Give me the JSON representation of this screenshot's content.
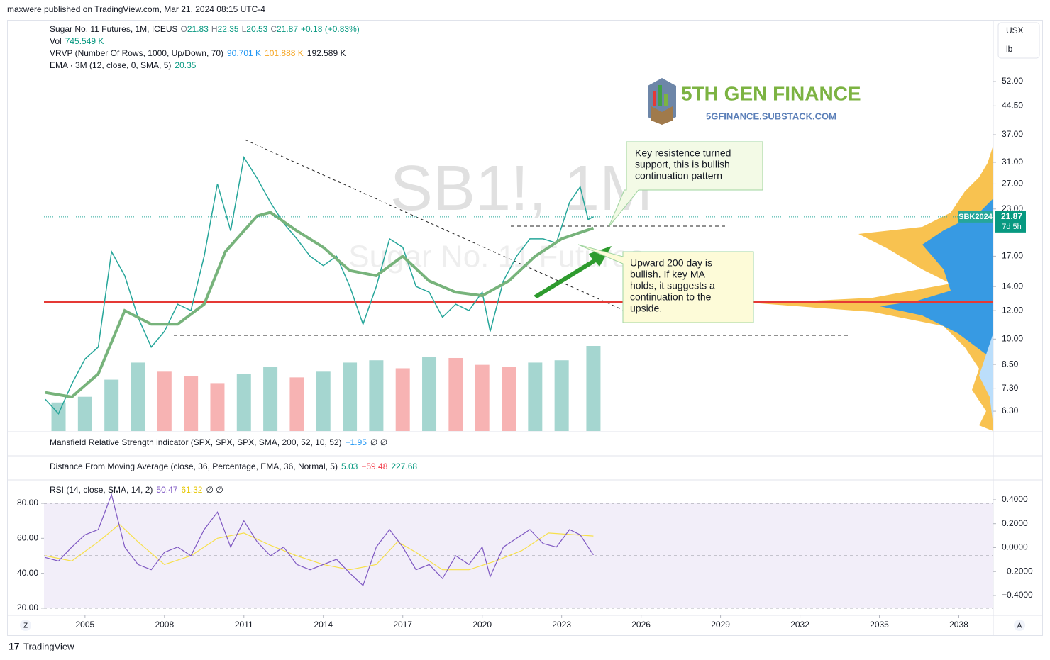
{
  "header": {
    "publisher": "maxwere published on TradingView.com, Mar 21, 2024 08:15 UTC-4"
  },
  "legend": {
    "symbol": "Sugar No. 11 Futures, 1M, ICEUS",
    "ohlc": [
      {
        "label": "O",
        "value": "21.83"
      },
      {
        "label": "H",
        "value": "22.35"
      },
      {
        "label": "L",
        "value": "20.53"
      },
      {
        "label": "C",
        "value": "21.87"
      }
    ],
    "change": "+0.18 (+0.83%)",
    "vol_label": "Vol",
    "vol_value": "745.549 K",
    "vrvp_label": "VRVP (Number Of Rows, 1000, Up/Down, 70)",
    "vrvp_values": [
      "90.701 K",
      "101.888 K",
      "192.589 K"
    ],
    "ema_label": "EMA · 3M (12, close, 0, SMA, 5)",
    "ema_value": "20.35"
  },
  "watermark": {
    "symbol": "SB1!, 1M",
    "name": "Sugar No. 11 Futures"
  },
  "logo": {
    "name": "5TH GEN FINANCE",
    "url": "5GFINANCE.SUBSTACK.COM"
  },
  "annotations": [
    {
      "lines": [
        "Key resistence turned",
        "support, this is bullish",
        "continuation pattern"
      ]
    },
    {
      "lines": [
        "Upward 200 day is",
        "bullish.  If key MA",
        "holds, it suggests a",
        "continuation to the",
        "upside."
      ]
    }
  ],
  "chart_data": {
    "type": "line",
    "log_scale": true,
    "x": [
      2003.5,
      2004,
      2004.5,
      2005,
      2005.5,
      2006,
      2006.5,
      2007,
      2007.5,
      2008,
      2008.5,
      2009,
      2009.5,
      2010,
      2010.5,
      2011,
      2011.5,
      2012,
      2012.5,
      2013,
      2013.5,
      2014,
      2014.5,
      2015,
      2015.5,
      2016,
      2016.5,
      2017,
      2017.5,
      2018,
      2018.5,
      2019,
      2019.5,
      2020,
      2020.3,
      2020.8,
      2021.3,
      2021.8,
      2022.3,
      2022.8,
      2023.3,
      2023.7,
      2024,
      2024.2
    ],
    "series": [
      {
        "name": "Sugar No. 11 Futures",
        "color": "#26a69a",
        "values": [
          6.8,
          6.2,
          7.5,
          8.8,
          9.5,
          17.5,
          15,
          11.5,
          9.5,
          10.5,
          12.5,
          12,
          17,
          27,
          20,
          32,
          28,
          24,
          21,
          19,
          17,
          16,
          17,
          14,
          11,
          14,
          19,
          18,
          14,
          13.5,
          11.5,
          12.5,
          12,
          13.5,
          10.5,
          14.5,
          17,
          19,
          19,
          18.5,
          24,
          26.5,
          21.5,
          21.87
        ]
      }
    ],
    "ema": {
      "color": "#77b37b",
      "x": [
        2003.5,
        2004.5,
        2005.5,
        2006.5,
        2007.5,
        2008.5,
        2009.5,
        2010.3,
        2011,
        2011.5,
        2012,
        2013,
        2014,
        2015,
        2016,
        2017,
        2018,
        2019,
        2020,
        2021,
        2022,
        2023,
        2024.2
      ],
      "values": [
        7.1,
        6.9,
        8,
        12,
        11,
        11,
        12.5,
        17.5,
        20,
        22,
        22.5,
        20,
        18,
        15.5,
        15,
        17,
        14.5,
        13.5,
        13.2,
        14.5,
        17,
        19,
        20.35
      ]
    },
    "last": {
      "contract": "SBK2024",
      "price": 21.87,
      "countdown": "7d 5h"
    },
    "ylim": [
      5.55,
      76.5
    ],
    "yticks": [
      {
        "value": 52,
        "label": "52.00"
      },
      {
        "value": 44.5,
        "label": "44.50"
      },
      {
        "value": 37,
        "label": "37.00"
      },
      {
        "value": 31,
        "label": "31.00"
      },
      {
        "value": 27,
        "label": "27.00"
      },
      {
        "value": 23,
        "label": "23.00"
      },
      {
        "value": 17,
        "label": "17.00"
      },
      {
        "value": 14,
        "label": "14.00"
      },
      {
        "value": 12,
        "label": "12.00"
      },
      {
        "value": 10,
        "label": "10.00"
      },
      {
        "value": 8.5,
        "label": "8.50"
      },
      {
        "value": 7.3,
        "label": "7.30"
      },
      {
        "value": 6.3,
        "label": "6.30"
      }
    ],
    "xlim": [
      2003.45,
      2039.3
    ],
    "xticks": [
      2005,
      2008,
      2011,
      2014,
      2017,
      2020,
      2023,
      2026,
      2029,
      2032,
      2035,
      2038
    ],
    "currency": "USX",
    "unit": "lb"
  },
  "volume": {
    "x": [
      2004,
      2005,
      2006,
      2007,
      2008,
      2009,
      2010,
      2011,
      2012,
      2013,
      2014,
      2015,
      2016,
      2017,
      2018,
      2019,
      2020,
      2021,
      2022,
      2023,
      2024.2
    ],
    "values": [
      250,
      300,
      450,
      600,
      520,
      480,
      420,
      500,
      560,
      470,
      520,
      600,
      620,
      550,
      650,
      640,
      580,
      560,
      600,
      620,
      745.549
    ]
  },
  "indicators": [
    {
      "label": "Mansfield Relative Strength indicator (SPX, SPX, SPX, SMA, 200, 52, 10, 52)",
      "values": [
        "−1.95",
        "∅ ∅"
      ]
    },
    {
      "label": "Distance From Moving Average (close, 36, Percentage, EMA, 36, Normal, 5)",
      "values": [
        "5.03",
        "−59.48",
        "227.68"
      ]
    }
  ],
  "rsi_chart": {
    "type": "line",
    "label": "RSI (14, close, SMA, 14, 2)",
    "values_text": [
      "50.47",
      "61.32",
      "∅ ∅"
    ],
    "series": [
      {
        "name": "RSI",
        "color": "#7e57c2",
        "x": [
          2003.5,
          2004,
          2004.5,
          2005,
          2005.5,
          2006,
          2006.5,
          2007,
          2007.5,
          2008,
          2008.5,
          2009,
          2009.5,
          2010,
          2010.5,
          2011,
          2011.5,
          2012,
          2012.5,
          2013,
          2013.5,
          2014,
          2014.5,
          2015,
          2015.5,
          2016,
          2016.5,
          2017,
          2017.5,
          2018,
          2018.5,
          2019,
          2019.5,
          2020,
          2020.3,
          2020.8,
          2021.3,
          2021.8,
          2022.3,
          2022.8,
          2023.3,
          2023.7,
          2024,
          2024.2
        ],
        "values": [
          49,
          47,
          55,
          62,
          65,
          85,
          55,
          45,
          42,
          52,
          55,
          50,
          65,
          75,
          55,
          70,
          58,
          50,
          55,
          45,
          42,
          45,
          48,
          40,
          33,
          55,
          65,
          55,
          42,
          45,
          37,
          50,
          45,
          55,
          38,
          55,
          60,
          65,
          57,
          55,
          65,
          62,
          55,
          50.47
        ]
      },
      {
        "name": "RSI-based MA",
        "color": "#f7e04b",
        "x": [
          2003.5,
          2004.5,
          2005.5,
          2006.3,
          2007,
          2008,
          2009,
          2010,
          2011,
          2012,
          2013,
          2014,
          2015,
          2016,
          2016.8,
          2017.5,
          2018.5,
          2019.5,
          2020.5,
          2021.5,
          2022.5,
          2023.5,
          2024.2
        ],
        "values": [
          50,
          47,
          58,
          68,
          58,
          45,
          50,
          60,
          63,
          56,
          50,
          45,
          42,
          45,
          58,
          52,
          42,
          42,
          47,
          53,
          63,
          62,
          61.32
        ]
      }
    ],
    "bands": [
      80,
      50,
      20
    ],
    "ylim": [
      15.9,
      85.3
    ],
    "yticks": [
      {
        "value": 80,
        "label": "80.00"
      },
      {
        "value": 60,
        "label": "60.00"
      },
      {
        "value": 40,
        "label": "40.00"
      },
      {
        "value": 20,
        "label": "20.00"
      }
    ],
    "y2lim": [
      -0.566,
      0.447
    ],
    "y2ticks": [
      {
        "value": 0.4,
        "label": "0.4000"
      },
      {
        "value": 0.2,
        "label": "0.2000"
      },
      {
        "value": 0,
        "label": "0.0000"
      },
      {
        "value": -0.2,
        "label": "−0.2000"
      },
      {
        "value": -0.4,
        "label": "−0.4000"
      }
    ]
  },
  "axis_buttons": [
    "Z",
    "A"
  ],
  "footer": {
    "brand": "TradingView"
  }
}
